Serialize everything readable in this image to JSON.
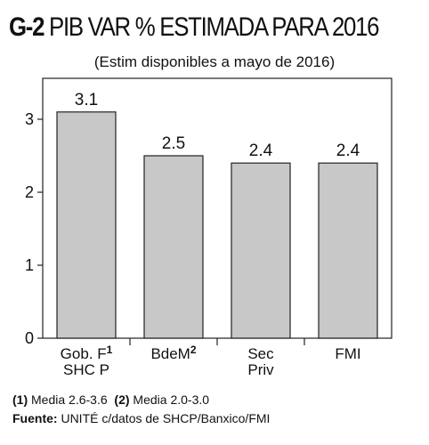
{
  "title": {
    "code": "G-2",
    "text": "PIB VAR % ESTIMADA PARA 2016"
  },
  "subtitle": "(Estim disponibles a mayo de 2016)",
  "chart_data": {
    "type": "bar",
    "categories": [
      {
        "line1": "Gob. F",
        "sup": "1",
        "line2": "SHC P"
      },
      {
        "line1": "BdeM",
        "sup": "2",
        "line2": ""
      },
      {
        "line1": "Sec",
        "sup": "",
        "line2": "Priv"
      },
      {
        "line1": "FMI",
        "sup": "",
        "line2": ""
      }
    ],
    "values": [
      3.1,
      2.5,
      2.4,
      2.4
    ],
    "value_labels": [
      "3.1",
      "2.5",
      "2.4",
      "2.4"
    ],
    "yticks": [
      "0",
      "1",
      "2",
      "3"
    ],
    "ylim": [
      0,
      3.5
    ],
    "grid": false,
    "bar_color": "#c8c8c8"
  },
  "footnotes": {
    "note_mark1": "(1)",
    "note_text1": " Media 2.6-3.6",
    "note_mark2": "(2)",
    "note_text2": " Media 2.0-3.0",
    "source_label": "Fuente:",
    "source_text": " UNITÉ c/datos de SHCP/Banxico/FMI"
  }
}
